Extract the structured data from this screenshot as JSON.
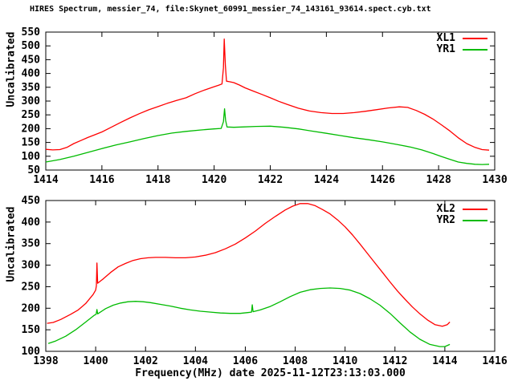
{
  "title": "HIRES Spectrum, messier_74, file:Skynet_60991_messier_74_143161_93614.spect.cyb.txt",
  "chart_data": [
    {
      "type": "line",
      "plot": "top",
      "ylabel": "Uncalibrated",
      "xlabel": "",
      "xlim": [
        1414,
        1430
      ],
      "ylim": [
        50,
        550
      ],
      "xticks": [
        1414,
        1416,
        1418,
        1420,
        1422,
        1424,
        1426,
        1428,
        1430
      ],
      "yticks": [
        50,
        100,
        150,
        200,
        250,
        300,
        350,
        400,
        450,
        500,
        550
      ],
      "grid": false,
      "legend_position": "top-right-inside",
      "series": [
        {
          "name": "XL1",
          "color": "#ff0000",
          "points": [
            [
              1414.0,
              125
            ],
            [
              1414.25,
              123
            ],
            [
              1414.5,
              124
            ],
            [
              1414.75,
              132
            ],
            [
              1415.0,
              146
            ],
            [
              1415.25,
              157
            ],
            [
              1415.5,
              168
            ],
            [
              1415.75,
              178
            ],
            [
              1416.0,
              188
            ],
            [
              1416.33,
              205
            ],
            [
              1416.66,
              222
            ],
            [
              1417.0,
              239
            ],
            [
              1417.33,
              254
            ],
            [
              1417.66,
              268
            ],
            [
              1418.0,
              280
            ],
            [
              1418.33,
              292
            ],
            [
              1418.66,
              302
            ],
            [
              1419.0,
              312
            ],
            [
              1419.33,
              327
            ],
            [
              1419.66,
              340
            ],
            [
              1420.0,
              352
            ],
            [
              1420.15,
              357
            ],
            [
              1420.28,
              362
            ],
            [
              1420.33,
              420
            ],
            [
              1420.36,
              525
            ],
            [
              1420.4,
              430
            ],
            [
              1420.44,
              372
            ],
            [
              1420.55,
              370
            ],
            [
              1420.7,
              367
            ],
            [
              1420.9,
              358
            ],
            [
              1421.1,
              348
            ],
            [
              1421.4,
              336
            ],
            [
              1421.7,
              324
            ],
            [
              1422.0,
              312
            ],
            [
              1422.3,
              299
            ],
            [
              1422.6,
              288
            ],
            [
              1423.0,
              274
            ],
            [
              1423.4,
              264
            ],
            [
              1423.8,
              258
            ],
            [
              1424.2,
              255
            ],
            [
              1424.6,
              255
            ],
            [
              1425.0,
              258
            ],
            [
              1425.4,
              263
            ],
            [
              1425.8,
              269
            ],
            [
              1426.2,
              275
            ],
            [
              1426.6,
              279
            ],
            [
              1426.9,
              277
            ],
            [
              1427.2,
              266
            ],
            [
              1427.5,
              252
            ],
            [
              1427.8,
              235
            ],
            [
              1428.1,
              214
            ],
            [
              1428.4,
              192
            ],
            [
              1428.7,
              167
            ],
            [
              1429.0,
              146
            ],
            [
              1429.3,
              132
            ],
            [
              1429.55,
              124
            ],
            [
              1429.8,
              122
            ]
          ]
        },
        {
          "name": "YR1",
          "color": "#00bb00",
          "points": [
            [
              1414.0,
              79
            ],
            [
              1414.5,
              88
            ],
            [
              1415.0,
              100
            ],
            [
              1415.5,
              114
            ],
            [
              1416.0,
              128
            ],
            [
              1416.5,
              141
            ],
            [
              1417.0,
              152
            ],
            [
              1417.5,
              164
            ],
            [
              1418.0,
              175
            ],
            [
              1418.5,
              184
            ],
            [
              1419.0,
              190
            ],
            [
              1419.5,
              195
            ],
            [
              1420.0,
              199
            ],
            [
              1420.25,
              201
            ],
            [
              1420.33,
              225
            ],
            [
              1420.37,
              272
            ],
            [
              1420.41,
              230
            ],
            [
              1420.46,
              206
            ],
            [
              1420.7,
              205
            ],
            [
              1421.0,
              206
            ],
            [
              1421.5,
              208
            ],
            [
              1422.0,
              209
            ],
            [
              1422.5,
              205
            ],
            [
              1423.0,
              199
            ],
            [
              1423.5,
              191
            ],
            [
              1424.0,
              183
            ],
            [
              1424.5,
              175
            ],
            [
              1425.0,
              167
            ],
            [
              1425.5,
              160
            ],
            [
              1426.0,
              152
            ],
            [
              1426.5,
              143
            ],
            [
              1427.0,
              133
            ],
            [
              1427.4,
              123
            ],
            [
              1427.8,
              110
            ],
            [
              1428.1,
              99
            ],
            [
              1428.4,
              89
            ],
            [
              1428.7,
              79
            ],
            [
              1429.0,
              74
            ],
            [
              1429.3,
              71
            ],
            [
              1429.55,
              70
            ],
            [
              1429.8,
              71
            ]
          ]
        }
      ]
    },
    {
      "type": "line",
      "plot": "bottom",
      "ylabel": "Uncalibrated",
      "xlabel": "Frequency(MHz) date 2025-11-12T23:13:03.000",
      "xlim": [
        1398,
        1416
      ],
      "ylim": [
        100,
        450
      ],
      "xticks": [
        1398,
        1400,
        1402,
        1404,
        1406,
        1408,
        1410,
        1412,
        1414,
        1416
      ],
      "yticks": [
        100,
        150,
        200,
        250,
        300,
        350,
        400,
        450
      ],
      "grid": false,
      "legend_position": "top-right-inside",
      "series": [
        {
          "name": "XL2",
          "color": "#ff0000",
          "points": [
            [
              1398.05,
              165
            ],
            [
              1398.3,
              167
            ],
            [
              1398.6,
              174
            ],
            [
              1399.0,
              186
            ],
            [
              1399.3,
              196
            ],
            [
              1399.6,
              211
            ],
            [
              1399.9,
              232
            ],
            [
              1400.0,
              242
            ],
            [
              1400.03,
              252
            ],
            [
              1400.05,
              305
            ],
            [
              1400.08,
              258
            ],
            [
              1400.3,
              268
            ],
            [
              1400.6,
              283
            ],
            [
              1400.9,
              296
            ],
            [
              1401.2,
              304
            ],
            [
              1401.5,
              311
            ],
            [
              1401.8,
              315
            ],
            [
              1402.1,
              317
            ],
            [
              1402.4,
              318
            ],
            [
              1402.8,
              318
            ],
            [
              1403.2,
              317
            ],
            [
              1403.6,
              317
            ],
            [
              1404.0,
              319
            ],
            [
              1404.4,
              323
            ],
            [
              1404.8,
              329
            ],
            [
              1405.2,
              338
            ],
            [
              1405.6,
              349
            ],
            [
              1406.0,
              363
            ],
            [
              1406.4,
              379
            ],
            [
              1406.8,
              397
            ],
            [
              1407.2,
              413
            ],
            [
              1407.6,
              428
            ],
            [
              1407.9,
              437
            ],
            [
              1408.2,
              443
            ],
            [
              1408.5,
              443
            ],
            [
              1408.8,
              438
            ],
            [
              1409.1,
              429
            ],
            [
              1409.4,
              419
            ],
            [
              1409.7,
              405
            ],
            [
              1410.0,
              389
            ],
            [
              1410.3,
              370
            ],
            [
              1410.6,
              349
            ],
            [
              1410.9,
              327
            ],
            [
              1411.2,
              305
            ],
            [
              1411.5,
              283
            ],
            [
              1411.8,
              261
            ],
            [
              1412.1,
              240
            ],
            [
              1412.4,
              221
            ],
            [
              1412.7,
              203
            ],
            [
              1413.0,
              187
            ],
            [
              1413.3,
              173
            ],
            [
              1413.6,
              162
            ],
            [
              1413.9,
              158
            ],
            [
              1414.1,
              162
            ],
            [
              1414.2,
              168
            ]
          ]
        },
        {
          "name": "YR2",
          "color": "#00bb00",
          "points": [
            [
              1398.1,
              118
            ],
            [
              1398.4,
              124
            ],
            [
              1398.8,
              135
            ],
            [
              1399.2,
              150
            ],
            [
              1399.6,
              168
            ],
            [
              1399.95,
              184
            ],
            [
              1400.02,
              186
            ],
            [
              1400.05,
              197
            ],
            [
              1400.08,
              187
            ],
            [
              1400.4,
              199
            ],
            [
              1400.7,
              207
            ],
            [
              1401.0,
              212
            ],
            [
              1401.3,
              215
            ],
            [
              1401.6,
              216
            ],
            [
              1401.9,
              215
            ],
            [
              1402.2,
              213
            ],
            [
              1402.6,
              209
            ],
            [
              1403.0,
              205
            ],
            [
              1403.4,
              200
            ],
            [
              1403.8,
              196
            ],
            [
              1404.2,
              193
            ],
            [
              1404.6,
              191
            ],
            [
              1405.0,
              189
            ],
            [
              1405.4,
              188
            ],
            [
              1405.8,
              188
            ],
            [
              1406.1,
              190
            ],
            [
              1406.25,
              191
            ],
            [
              1406.28,
              208
            ],
            [
              1406.31,
              192
            ],
            [
              1406.6,
              196
            ],
            [
              1407.0,
              204
            ],
            [
              1407.4,
              215
            ],
            [
              1407.8,
              227
            ],
            [
              1408.2,
              237
            ],
            [
              1408.6,
              243
            ],
            [
              1409.0,
              246
            ],
            [
              1409.4,
              247
            ],
            [
              1409.8,
              246
            ],
            [
              1410.2,
              242
            ],
            [
              1410.6,
              234
            ],
            [
              1411.0,
              222
            ],
            [
              1411.4,
              207
            ],
            [
              1411.8,
              188
            ],
            [
              1412.2,
              166
            ],
            [
              1412.6,
              145
            ],
            [
              1413.0,
              128
            ],
            [
              1413.4,
              116
            ],
            [
              1413.8,
              111
            ],
            [
              1414.0,
              111
            ],
            [
              1414.2,
              116
            ]
          ]
        }
      ]
    }
  ]
}
